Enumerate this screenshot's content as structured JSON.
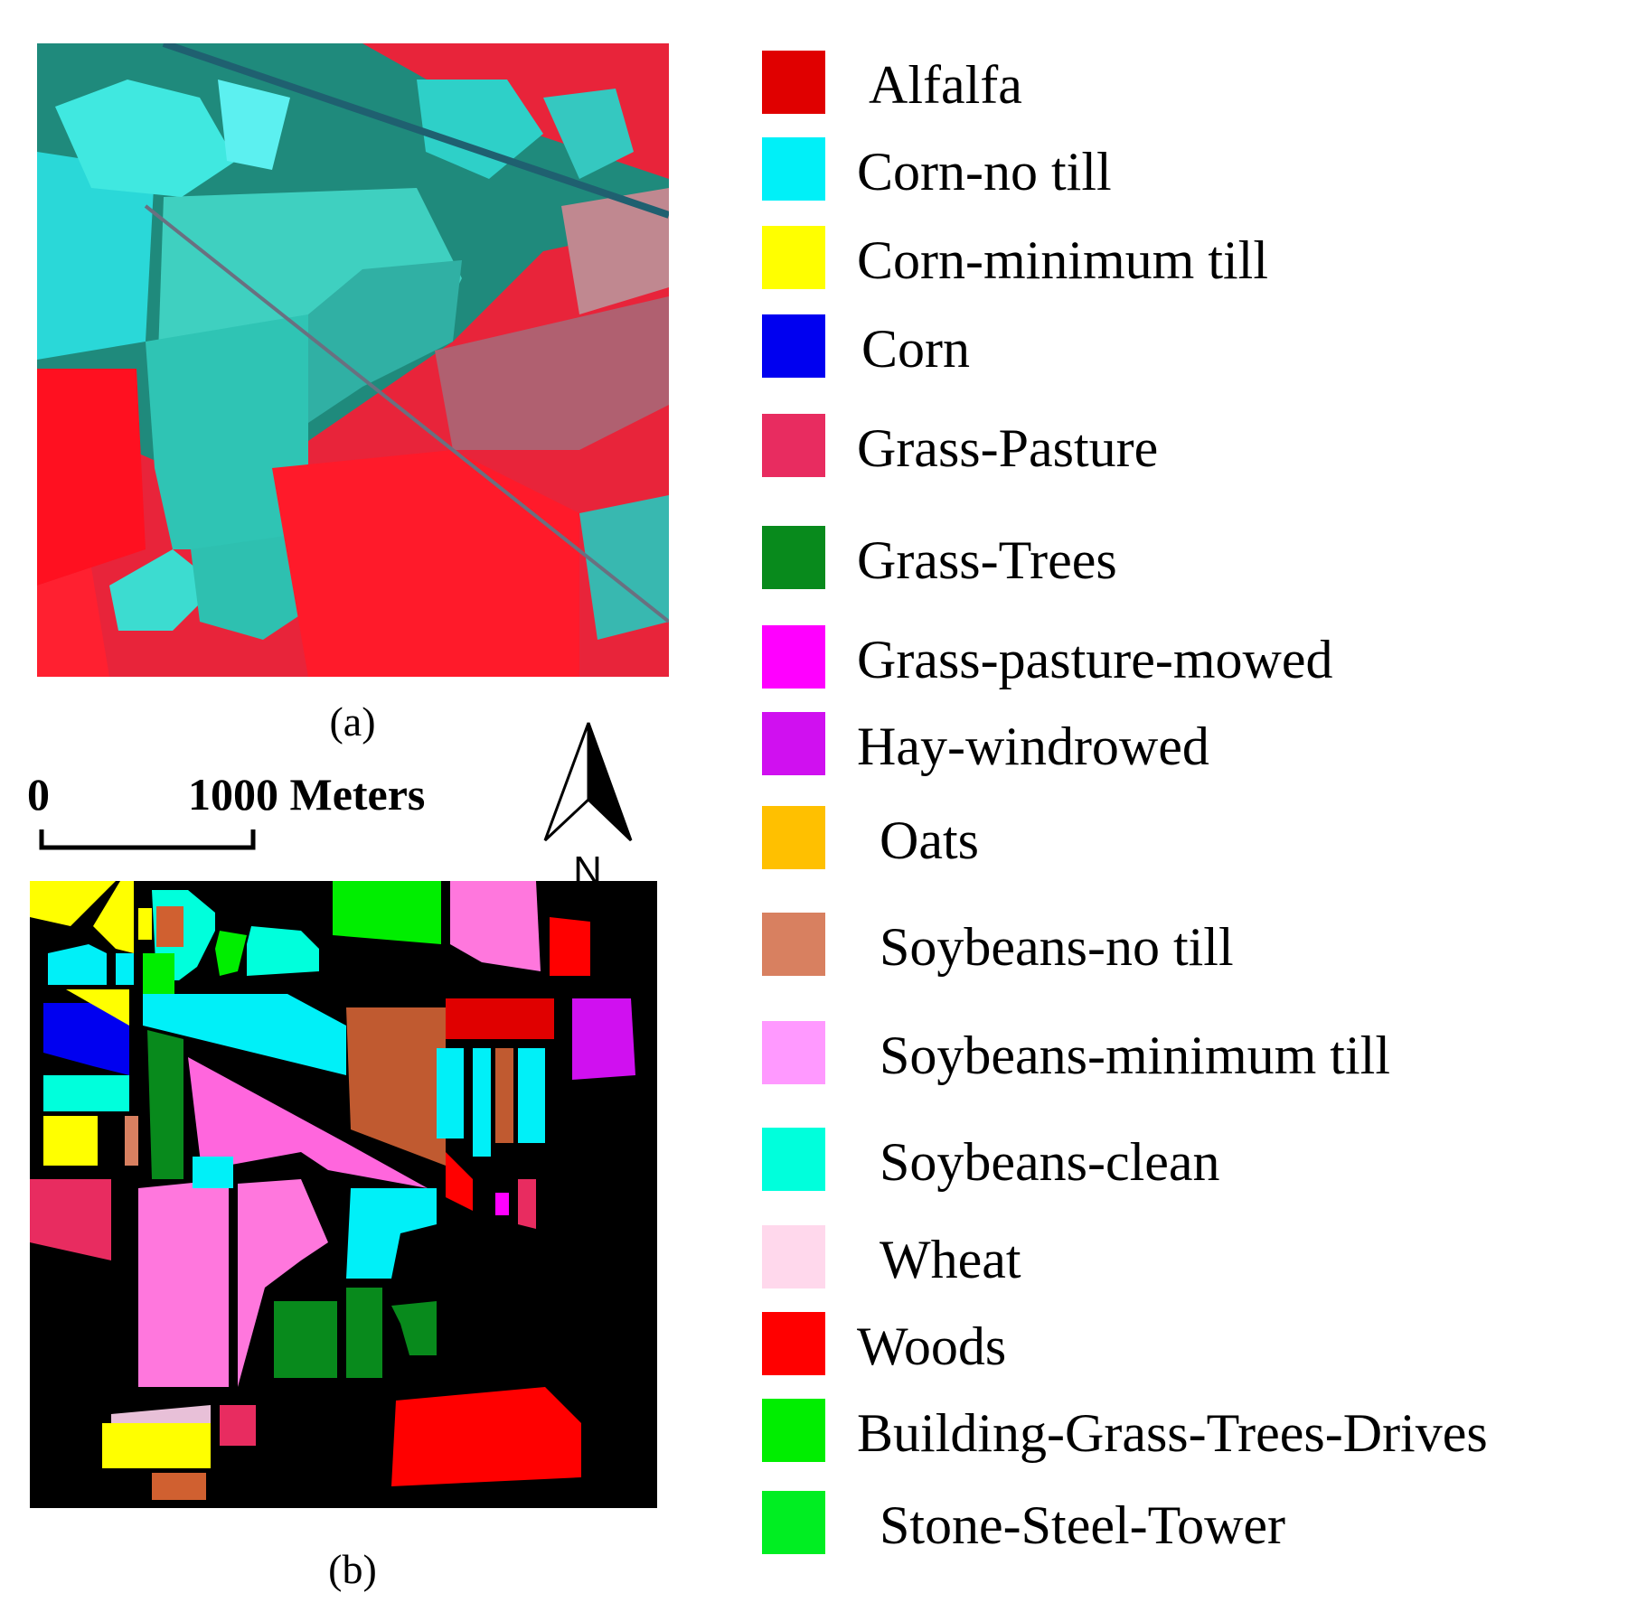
{
  "captions": {
    "a": "(a)",
    "b": "(b)"
  },
  "scale": {
    "zero": "0",
    "label": "1000 Meters"
  },
  "north_label": "N",
  "legend": [
    {
      "label": "Alfalfa",
      "color": "#e00000"
    },
    {
      "label": "Corn-no till",
      "color": "#00f0f8"
    },
    {
      "label": "Corn-minimum till",
      "color": "#ffff00"
    },
    {
      "label": "Corn",
      "color": "#0000f0"
    },
    {
      "label": "Grass-Pasture",
      "color": "#e82c60"
    },
    {
      "label": "Grass-Trees",
      "color": "#088a1c"
    },
    {
      "label": "Grass-pasture-mowed",
      "color": "#ff00ff"
    },
    {
      "label": "Hay-windrowed",
      "color": "#d010f0"
    },
    {
      "label": "Oats",
      "color": "#ffc000"
    },
    {
      "label": "Soybeans-no till",
      "color": "#d88060"
    },
    {
      "label": "Soybeans-minimum till",
      "color": "#ff99ff"
    },
    {
      "label": "Soybeans-clean",
      "color": "#00ffdc"
    },
    {
      "label": "Wheat",
      "color": "#ffd8ec"
    },
    {
      "label": "Woods",
      "color": "#ff0000"
    },
    {
      "label": "Building-Grass-Trees-Drives",
      "color": "#00ee00"
    },
    {
      "label": "Stone-Steel-Tower",
      "color": "#00ee22"
    }
  ]
}
